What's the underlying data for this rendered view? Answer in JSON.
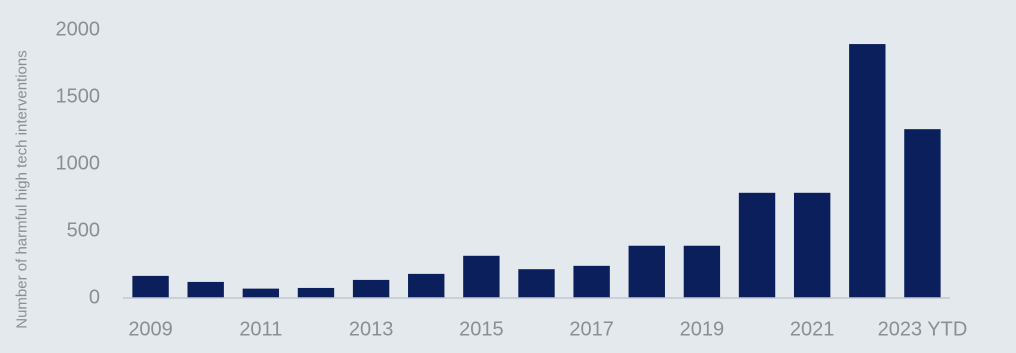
{
  "chart_data": {
    "type": "bar",
    "y_label": "Number of harmful high tech interventions",
    "categories": [
      "2009",
      null,
      "2011",
      null,
      "2013",
      null,
      "2015",
      null,
      "2017",
      null,
      "2019",
      null,
      "2021",
      null,
      "2023 YTD"
    ],
    "values": [
      165,
      120,
      70,
      75,
      135,
      180,
      315,
      215,
      240,
      390,
      390,
      785,
      785,
      1895,
      1260
    ],
    "color": "#0b1f5c",
    "ylim": [
      0,
      2000
    ],
    "yticks": [
      0,
      500,
      1000,
      1500,
      2000
    ],
    "grid": false
  }
}
